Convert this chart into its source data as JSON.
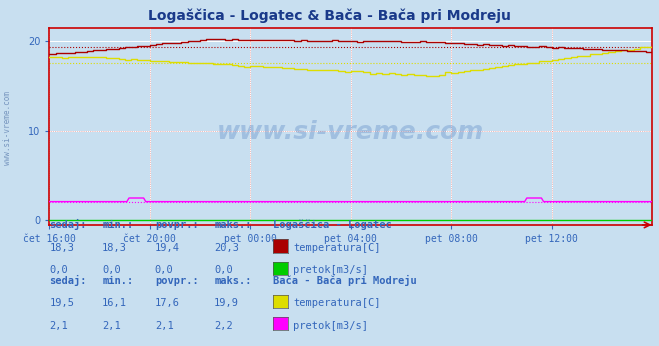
{
  "title": "Logaščica - Logatec & Bača - Bača pri Modreju",
  "title_color": "#1a3a8a",
  "bg_color": "#c8dff0",
  "plot_bg_color": "#c8dff0",
  "grid_color": "#ffffff",
  "axis_color": "#cc0000",
  "tick_label_color": "#3366bb",
  "x_labels": [
    "čet 16:00",
    "čet 20:00",
    "pet 00:00",
    "pet 04:00",
    "pet 08:00",
    "pet 12:00"
  ],
  "x_ticks_pos": [
    0,
    48,
    96,
    144,
    192,
    240
  ],
  "y_ticks": [
    0,
    10,
    20
  ],
  "ylim": [
    -0.5,
    21.5
  ],
  "xlim": [
    0,
    288
  ],
  "colors": {
    "logatec_temp": "#aa0000",
    "logatec_pretok": "#00cc00",
    "baca_temp": "#dddd00",
    "baca_pretok": "#ff00ff"
  },
  "dashed_lines": {
    "logatec_temp_avg": 19.4,
    "baca_temp_avg": 17.6,
    "baca_pretok_avg": 2.1
  },
  "legend1_title": "Logaščica - Logatec",
  "legend2_title": "Bača - Bača pri Modreju",
  "table_headers": [
    "sedaj:",
    "min.:",
    "povpr.:",
    "maks.:"
  ],
  "logatec_temp_row": [
    "18,3",
    "18,3",
    "19,4",
    "20,3"
  ],
  "logatec_pretok_row": [
    "0,0",
    "0,0",
    "0,0",
    "0,0"
  ],
  "baca_temp_row": [
    "19,5",
    "16,1",
    "17,6",
    "19,9"
  ],
  "baca_pretok_row": [
    "2,1",
    "2,1",
    "2,1",
    "2,2"
  ],
  "watermark": "www.si-vreme.com",
  "left_label": "www.si-vreme.com"
}
